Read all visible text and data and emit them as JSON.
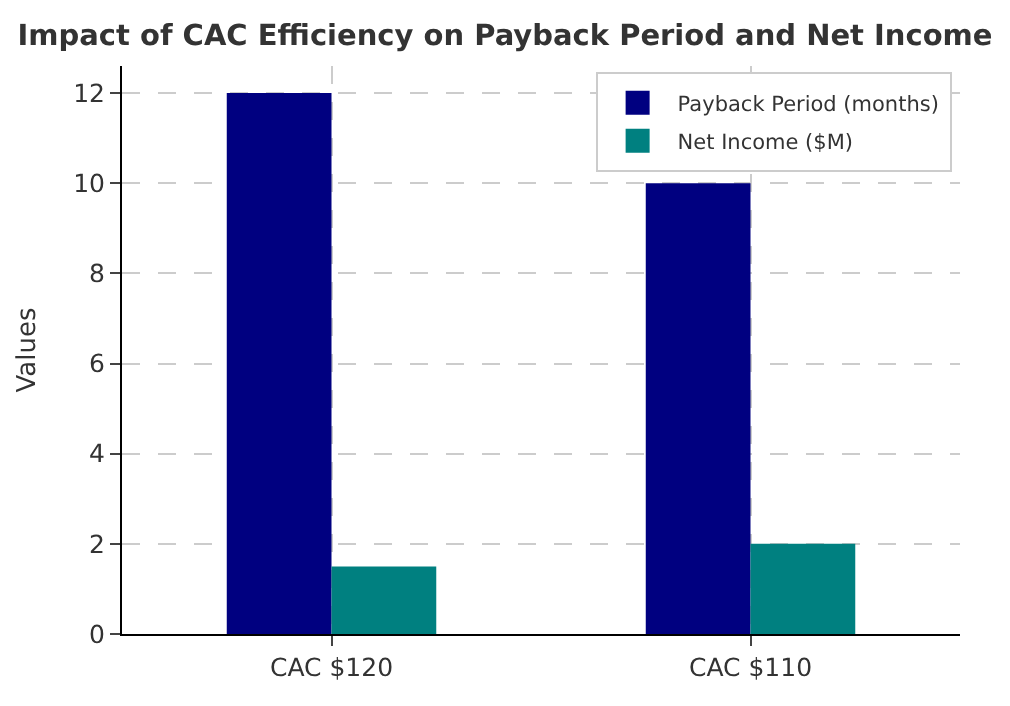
{
  "chart_data": {
    "type": "bar",
    "title": "Impact of CAC Efficiency on Payback Period and Net Income",
    "ylabel": "Values",
    "categories": [
      "CAC $120",
      "CAC $110"
    ],
    "series": [
      {
        "name": "Payback Period (months)",
        "color": "#000080",
        "values": [
          12,
          10
        ]
      },
      {
        "name": "Net Income ($M)",
        "color": "#008080",
        "values": [
          1.5,
          2
        ]
      }
    ],
    "ylim": [
      0,
      12.6
    ],
    "yticks": [
      0,
      2,
      4,
      6,
      8,
      10,
      12
    ],
    "grid": true,
    "legend": "top right"
  }
}
